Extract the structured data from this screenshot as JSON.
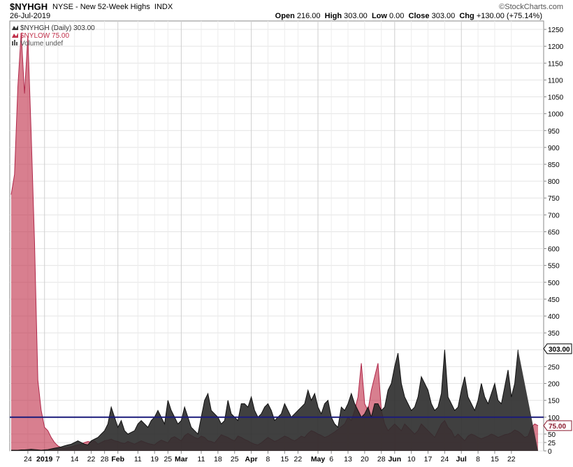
{
  "header": {
    "symbol": "$NYHGH",
    "description": "NYSE - New 52-Week Highs",
    "exchange": "INDX",
    "brand": "©StockCharts.com",
    "date": "26-Jul-2019",
    "open_label": "Open",
    "open": "216.00",
    "high_label": "High",
    "high": "303.00",
    "low_label": "Low",
    "low": "0.00",
    "close_label": "Close",
    "close": "303.00",
    "chg_label": "Chg",
    "chg": "+130.00 (+75.14%)"
  },
  "legend": [
    {
      "text": "$NYHGH (Daily) 303.00",
      "color": "#333333"
    },
    {
      "text": "$NYLOW 75.00",
      "color": "#c0304a"
    },
    {
      "text": "Volume undef",
      "color": "#555555"
    }
  ],
  "price_tags": [
    {
      "value": 303,
      "label": "303.00",
      "color": "#000000"
    },
    {
      "value": 75,
      "label": "75.00",
      "color": "#8b1a2e"
    }
  ],
  "chart_data": {
    "type": "area",
    "ylim": [
      0,
      1275
    ],
    "yticks": [
      0,
      25,
      50,
      100,
      150,
      200,
      250,
      300,
      350,
      400,
      450,
      500,
      550,
      600,
      650,
      700,
      750,
      800,
      850,
      900,
      950,
      1000,
      1050,
      1100,
      1150,
      1200,
      1250
    ],
    "reference_line": 100,
    "x_tick_labels": [
      {
        "i": 5,
        "label": "24",
        "bold": false
      },
      {
        "i": 10,
        "label": "2019",
        "bold": true
      },
      {
        "i": 14,
        "label": "7",
        "bold": false
      },
      {
        "i": 19,
        "label": "14",
        "bold": false
      },
      {
        "i": 24,
        "label": "22",
        "bold": false
      },
      {
        "i": 28,
        "label": "28",
        "bold": false
      },
      {
        "i": 32,
        "label": "Feb",
        "bold": true
      },
      {
        "i": 38,
        "label": "11",
        "bold": false
      },
      {
        "i": 43,
        "label": "19",
        "bold": false
      },
      {
        "i": 47,
        "label": "25",
        "bold": false
      },
      {
        "i": 51,
        "label": "Mar",
        "bold": true
      },
      {
        "i": 57,
        "label": "11",
        "bold": false
      },
      {
        "i": 62,
        "label": "18",
        "bold": false
      },
      {
        "i": 67,
        "label": "25",
        "bold": false
      },
      {
        "i": 72,
        "label": "Apr",
        "bold": true
      },
      {
        "i": 77,
        "label": "8",
        "bold": false
      },
      {
        "i": 82,
        "label": "15",
        "bold": false
      },
      {
        "i": 86,
        "label": "22",
        "bold": false
      },
      {
        "i": 92,
        "label": "May",
        "bold": true
      },
      {
        "i": 96,
        "label": "6",
        "bold": false
      },
      {
        "i": 101,
        "label": "13",
        "bold": false
      },
      {
        "i": 106,
        "label": "20",
        "bold": false
      },
      {
        "i": 111,
        "label": "28",
        "bold": false
      },
      {
        "i": 115,
        "label": "Jun",
        "bold": true
      },
      {
        "i": 120,
        "label": "10",
        "bold": false
      },
      {
        "i": 125,
        "label": "17",
        "bold": false
      },
      {
        "i": 130,
        "label": "24",
        "bold": false
      },
      {
        "i": 135,
        "label": "Jul",
        "bold": true
      },
      {
        "i": 140,
        "label": "8",
        "bold": false
      },
      {
        "i": 145,
        "label": "15",
        "bold": false
      },
      {
        "i": 150,
        "label": "22",
        "bold": false
      }
    ],
    "series": [
      {
        "name": "$NYLOW",
        "color": "#c0304a",
        "values": [
          760,
          820,
          1080,
          1240,
          1060,
          1230,
          940,
          620,
          210,
          120,
          70,
          60,
          40,
          25,
          15,
          10,
          8,
          10,
          12,
          15,
          18,
          20,
          25,
          28,
          26,
          30,
          20,
          25,
          30,
          32,
          35,
          30,
          28,
          24,
          22,
          28,
          24,
          20,
          25,
          30,
          26,
          22,
          20,
          18,
          26,
          32,
          28,
          24,
          38,
          42,
          36,
          30,
          45,
          52,
          46,
          40,
          36,
          44,
          40,
          30,
          28,
          24,
          36,
          48,
          44,
          40,
          34,
          30,
          44,
          40,
          34,
          30,
          24,
          20,
          18,
          24,
          32,
          40,
          34,
          28,
          32,
          38,
          44,
          40,
          34,
          30,
          36,
          44,
          40,
          52,
          60,
          56,
          50,
          46,
          40,
          44,
          50,
          56,
          64,
          72,
          80,
          100,
          90,
          120,
          160,
          260,
          140,
          120,
          180,
          220,
          260,
          120,
          80,
          60,
          70,
          80,
          70,
          60,
          80,
          70,
          60,
          50,
          60,
          80,
          70,
          60,
          50,
          40,
          60,
          80,
          90,
          70,
          60,
          40,
          50,
          40,
          30,
          44,
          50,
          46,
          40,
          36,
          40,
          44,
          50,
          46,
          40,
          44,
          48,
          50,
          54,
          62,
          58,
          50,
          40,
          44,
          70,
          80,
          75
        ],
        "fill_opacity": 0.62
      },
      {
        "name": "$NYHGH",
        "color": "#2b2b2b",
        "values": [
          2,
          2,
          2,
          3,
          3,
          4,
          5,
          4,
          3,
          2,
          3,
          4,
          6,
          8,
          10,
          12,
          15,
          18,
          20,
          25,
          30,
          25,
          20,
          18,
          30,
          35,
          40,
          50,
          60,
          80,
          130,
          100,
          70,
          90,
          60,
          50,
          55,
          60,
          80,
          90,
          80,
          70,
          90,
          100,
          120,
          100,
          80,
          150,
          120,
          100,
          80,
          90,
          130,
          100,
          70,
          60,
          50,
          100,
          150,
          170,
          120,
          110,
          100,
          80,
          90,
          150,
          110,
          100,
          90,
          140,
          140,
          130,
          160,
          120,
          100,
          110,
          130,
          140,
          120,
          90,
          100,
          110,
          140,
          120,
          100,
          110,
          120,
          130,
          140,
          180,
          150,
          170,
          130,
          110,
          140,
          150,
          100,
          80,
          70,
          130,
          120,
          140,
          170,
          140,
          120,
          100,
          110,
          130,
          100,
          140,
          140,
          120,
          130,
          180,
          200,
          250,
          290,
          200,
          160,
          140,
          120,
          130,
          160,
          220,
          200,
          180,
          140,
          120,
          130,
          170,
          300,
          160,
          140,
          120,
          130,
          180,
          220,
          160,
          140,
          120,
          150,
          200,
          160,
          140,
          170,
          200,
          150,
          140,
          190,
          240,
          160,
          200,
          300
        ]
      }
    ]
  }
}
